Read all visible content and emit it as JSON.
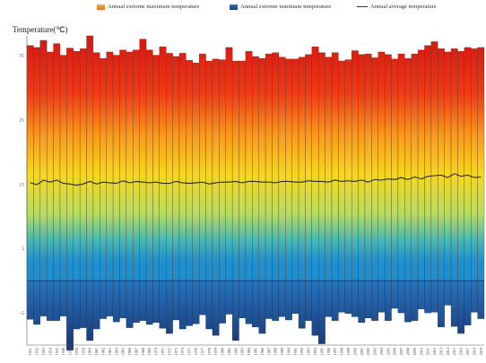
{
  "chart_data": {
    "type": "bar",
    "ylabel": "Temperature(℃)",
    "ylim": [
      -10,
      38
    ],
    "yticks": [
      35,
      25,
      15,
      5,
      -5
    ],
    "legend": [
      {
        "name": "Annual extreme maximum temperature",
        "kind": "bar",
        "color": "#e98a2a"
      },
      {
        "name": "Annual extreme minimum temperature",
        "kind": "bar",
        "color": "#2f5aa8"
      },
      {
        "name": "Annual average temperature",
        "kind": "line",
        "color": "#333333"
      }
    ],
    "categories": [
      "1951",
      "1952",
      "1953",
      "1954",
      "1955",
      "1956",
      "1957",
      "1958",
      "1959",
      "1960",
      "1961",
      "1962",
      "1963",
      "1964",
      "1965",
      "1966",
      "1967",
      "1968",
      "1969",
      "1970",
      "1971",
      "1972",
      "1973",
      "1974",
      "1975",
      "1976",
      "1977",
      "1978",
      "1979",
      "1980",
      "1981",
      "1982",
      "1983",
      "1984",
      "1985",
      "1986",
      "1987",
      "1988",
      "1989",
      "1990",
      "1991",
      "1992",
      "1993",
      "1994",
      "1995",
      "1996",
      "1997",
      "1998",
      "1999",
      "2000",
      "2001",
      "2002",
      "2003",
      "2004",
      "2005",
      "2006",
      "2007",
      "2008",
      "2009",
      "2010",
      "2011",
      "2012",
      "2013",
      "2014",
      "2015",
      "2016",
      "2017",
      "2018",
      "2019"
    ],
    "series": [
      {
        "name": "Annual extreme maximum temperature",
        "values": [
          36.5,
          36.2,
          37.3,
          35.5,
          36.8,
          35.0,
          36.1,
          35.6,
          36.0,
          38.0,
          35.4,
          34.5,
          35.5,
          35.0,
          35.8,
          35.5,
          35.8,
          37.5,
          35.8,
          35.0,
          36.3,
          35.3,
          34.8,
          35.3,
          34.2,
          33.8,
          35.2,
          34.1,
          34.4,
          34.3,
          36.2,
          34.1,
          34.1,
          35.6,
          34.8,
          34.5,
          35.2,
          35.4,
          34.7,
          34.4,
          34.4,
          34.7,
          35.1,
          36.3,
          35.4,
          34.7,
          35.4,
          34.1,
          34.3,
          35.7,
          35.1,
          35.2,
          34.6,
          35.5,
          35.1,
          34.4,
          35.2,
          34.5,
          35.2,
          35.8,
          36.5,
          37.1,
          36.0,
          35.5,
          36.0,
          35.6,
          36.2,
          36.0,
          36.2
        ]
      },
      {
        "name": "Annual extreme minimum temperature",
        "values": [
          -6.0,
          -6.8,
          -5.5,
          -6.2,
          -6.2,
          -5.5,
          -10.8,
          -7.5,
          -7.3,
          -9.3,
          -7.5,
          -5.9,
          -5.5,
          -6.4,
          -5.8,
          -7.3,
          -6.5,
          -6.2,
          -6.8,
          -6.5,
          -7.4,
          -8.2,
          -6.1,
          -7.5,
          -7.0,
          -6.7,
          -5.3,
          -7.5,
          -8.5,
          -6.6,
          -5.2,
          -9.3,
          -5.8,
          -6.7,
          -7.2,
          -8.2,
          -5.9,
          -6.2,
          -5.6,
          -6.1,
          -5.1,
          -7.4,
          -6.2,
          -8.5,
          -9.8,
          -5.6,
          -6.2,
          -4.9,
          -5.1,
          -5.6,
          -6.5,
          -5.8,
          -6.2,
          -4.9,
          -6.2,
          -4.3,
          -5.0,
          -6.4,
          -6.2,
          -4.4,
          -5.0,
          -4.9,
          -7.2,
          -3.8,
          -7.1,
          -8.2,
          -6.9,
          -4.9,
          -5.9
        ]
      },
      {
        "name": "Annual average temperature",
        "values": [
          15.2,
          14.9,
          15.6,
          15.3,
          15.6,
          15.1,
          15.0,
          14.8,
          15.0,
          15.4,
          15.0,
          15.3,
          15.2,
          15.1,
          15.5,
          15.2,
          15.4,
          15.3,
          15.2,
          15.3,
          15.1,
          15.1,
          15.4,
          15.2,
          15.1,
          15.2,
          15.3,
          15.0,
          15.2,
          15.3,
          15.3,
          15.4,
          15.2,
          15.4,
          15.4,
          15.3,
          15.3,
          15.2,
          15.4,
          15.4,
          15.3,
          15.3,
          15.5,
          15.4,
          15.4,
          15.3,
          15.6,
          15.4,
          15.5,
          15.4,
          15.6,
          15.3,
          15.7,
          15.6,
          15.8,
          15.7,
          16.0,
          15.7,
          16.1,
          15.8,
          16.2,
          16.3,
          16.4,
          16.0,
          16.6,
          16.2,
          16.4,
          16.0,
          16.1
        ]
      }
    ],
    "zero_line_value": 0,
    "grid": false,
    "legend_position": "top"
  }
}
